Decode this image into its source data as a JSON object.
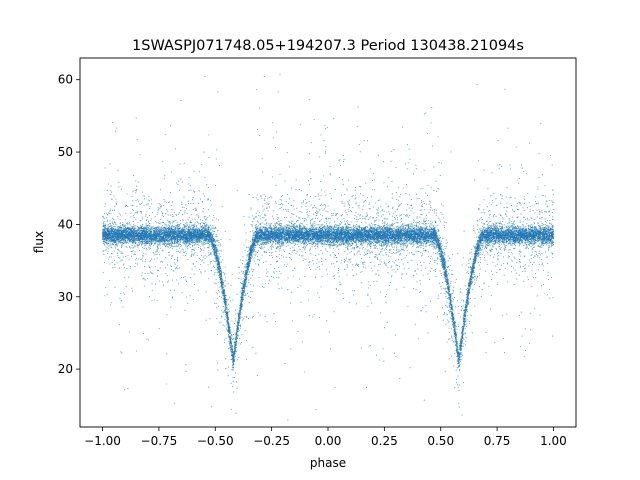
{
  "chart_data": {
    "type": "scatter",
    "title": "1SWASPJ071748.05+194207.3 Period 130438.21094s",
    "xlabel": "phase",
    "ylabel": "flux",
    "xlim": [
      -1.1,
      1.1
    ],
    "ylim": [
      12,
      63
    ],
    "xticks": [
      -1.0,
      -0.75,
      -0.5,
      -0.25,
      0.0,
      0.25,
      0.5,
      0.75,
      1.0
    ],
    "xtick_labels": [
      "−1.00",
      "−0.75",
      "−0.50",
      "−0.25",
      "0.00",
      "0.25",
      "0.50",
      "0.75",
      "1.00"
    ],
    "yticks": [
      20,
      30,
      40,
      50,
      60
    ],
    "ytick_labels": [
      "20",
      "30",
      "40",
      "50",
      "60"
    ],
    "grid": false,
    "marker_color": "#1f77b4",
    "light_curve": {
      "phase_range": [
        -1.0,
        1.0
      ],
      "baseline_flux": 38.5,
      "primary_eclipses": [
        {
          "phase": -0.42,
          "min_flux": 21
        },
        {
          "phase": 0.58,
          "min_flux": 21
        }
      ],
      "eclipse_half_width": 0.11,
      "approx_points": 20000
    }
  }
}
